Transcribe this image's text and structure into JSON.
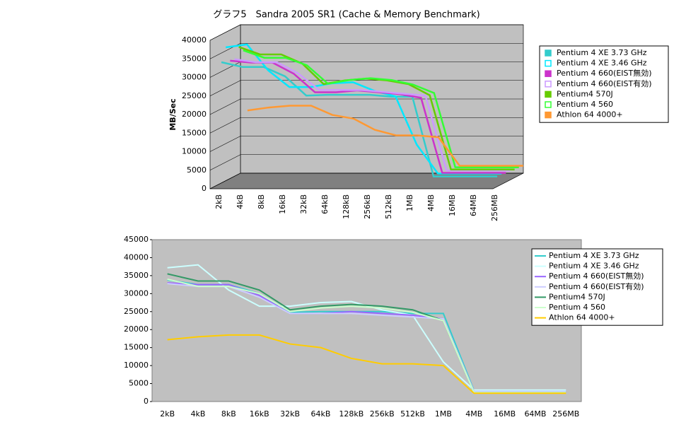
{
  "title": "グラフ5　Sandra 2005 SR1 (Cache & Memory Benchmark)",
  "chart_data": [
    {
      "type": "line",
      "3d": true,
      "y_label": "MB/Sec",
      "categories": [
        "2kB",
        "4kB",
        "8kB",
        "16kB",
        "32kB",
        "64kB",
        "128kB",
        "256kB",
        "512kB",
        "1MB",
        "4MB",
        "16MB",
        "64MB",
        "256MB"
      ],
      "ylim": [
        0,
        40000
      ],
      "yticks": [
        0,
        5000,
        10000,
        15000,
        20000,
        25000,
        30000,
        35000,
        40000
      ],
      "grid": true,
      "series": [
        {
          "name": "Pentium 4 XE 3.73 GHz",
          "color": "#33cccc",
          "values": [
            33800,
            32500,
            32500,
            30000,
            24800,
            25000,
            25000,
            25000,
            24500,
            24500,
            3000,
            3000,
            3000,
            3000
          ]
        },
        {
          "name": "Pentium 4 XE 3.46 GHz",
          "color": "#00e8ff",
          "values": [
            37200,
            38000,
            31000,
            26500,
            26500,
            27500,
            27800,
            25500,
            24000,
            11000,
            3200,
            3200,
            3200,
            3200
          ]
        },
        {
          "name": "Pentium 4 660(EIST無効)",
          "color": "#cc33cc",
          "values": [
            33000,
            32500,
            32500,
            29500,
            24500,
            24500,
            25000,
            24500,
            24000,
            23000,
            2800,
            2800,
            2800,
            2800
          ]
        },
        {
          "name": "Pentium 4 660(EIST有効)",
          "color": "#cc99ff",
          "values": [
            32800,
            32000,
            32000,
            29000,
            24500,
            24500,
            24500,
            24000,
            23500,
            23000,
            2800,
            2800,
            2800,
            2800
          ]
        },
        {
          "name": "Pentium4 570J",
          "color": "#66cc00",
          "values": [
            35500,
            33500,
            33500,
            31000,
            25500,
            26500,
            27000,
            26500,
            25500,
            22500,
            2500,
            2500,
            2500,
            2500
          ]
        },
        {
          "name": "Pentium 4 560",
          "color": "#33ff33",
          "values": [
            34000,
            32000,
            32000,
            30000,
            25000,
            26000,
            26500,
            26000,
            24800,
            22500,
            2500,
            2500,
            2500,
            2500
          ]
        },
        {
          "name": "Athlon 64 4000+",
          "color": "#ff9933",
          "values": [
            17200,
            18000,
            18500,
            18500,
            16000,
            15000,
            12000,
            10500,
            10500,
            10000,
            2300,
            2300,
            2300,
            2300
          ]
        }
      ]
    },
    {
      "type": "line",
      "3d": false,
      "categories": [
        "2kB",
        "4kB",
        "8kB",
        "16kB",
        "32kB",
        "64kB",
        "128kB",
        "256kB",
        "512kB",
        "1MB",
        "4MB",
        "16MB",
        "64MB",
        "256MB"
      ],
      "ylim": [
        0,
        45000
      ],
      "yticks": [
        0,
        5000,
        10000,
        15000,
        20000,
        25000,
        30000,
        35000,
        40000,
        45000
      ],
      "grid": false,
      "series": [
        {
          "name": "Pentium 4 XE 3.73 GHz",
          "color": "#33cccc",
          "values": [
            33800,
            32500,
            32500,
            30000,
            24800,
            25000,
            25000,
            25000,
            24500,
            24500,
            3000,
            3000,
            3000,
            3000
          ]
        },
        {
          "name": "Pentium 4 XE 3.46 GHz",
          "color": "#ccffff",
          "values": [
            37200,
            38000,
            31000,
            26500,
            26500,
            27500,
            27800,
            25500,
            24000,
            11000,
            3200,
            3200,
            3200,
            3200
          ]
        },
        {
          "name": "Pentium 4 660(EIST無効)",
          "color": "#9966ff",
          "values": [
            33000,
            32500,
            32500,
            29500,
            24500,
            24500,
            25000,
            24500,
            24000,
            23000,
            2800,
            2800,
            2800,
            2800
          ]
        },
        {
          "name": "Pentium 4 660(EIST有効)",
          "color": "#ccccff",
          "values": [
            32800,
            32000,
            32000,
            29000,
            24500,
            24500,
            24500,
            24000,
            23500,
            23000,
            2800,
            2800,
            2800,
            2800
          ]
        },
        {
          "name": "Pentium4 570J",
          "color": "#339966",
          "values": [
            35500,
            33500,
            33500,
            31000,
            25500,
            26500,
            27000,
            26500,
            25500,
            22500,
            2500,
            2500,
            2500,
            2500
          ]
        },
        {
          "name": "Pentium 4 560",
          "color": "#ccffcc",
          "values": [
            34000,
            32000,
            32000,
            30000,
            25000,
            26000,
            26500,
            26000,
            24800,
            22500,
            2500,
            2500,
            2500,
            2500
          ]
        },
        {
          "name": "Athlon 64 4000+",
          "color": "#ffcc00",
          "values": [
            17200,
            18000,
            18500,
            18500,
            16000,
            15000,
            12000,
            10500,
            10500,
            10000,
            2300,
            2300,
            2300,
            2300
          ]
        }
      ]
    }
  ]
}
